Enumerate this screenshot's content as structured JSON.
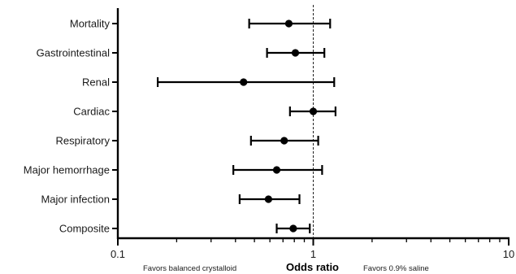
{
  "chart_data": {
    "type": "forest",
    "scale": "log",
    "xlabel": "Odds ratio",
    "xlim": [
      0.1,
      10
    ],
    "xticks": [
      {
        "value": 0.1,
        "label": "0.1"
      },
      {
        "value": 1,
        "label": "1"
      },
      {
        "value": 10,
        "label": "10"
      }
    ],
    "reference_line": 1,
    "favors_left": "Favors balanced crystalloid",
    "favors_right": "Favors 0.9% saline",
    "rows": [
      {
        "label": "Mortality",
        "estimate": 0.75,
        "lower": 0.47,
        "upper": 1.22
      },
      {
        "label": "Gastrointestinal",
        "estimate": 0.81,
        "lower": 0.58,
        "upper": 1.14
      },
      {
        "label": "Renal",
        "estimate": 0.44,
        "lower": 0.16,
        "upper": 1.28
      },
      {
        "label": "Cardiac",
        "estimate": 1.0,
        "lower": 0.76,
        "upper": 1.3
      },
      {
        "label": "Respiratory",
        "estimate": 0.71,
        "lower": 0.48,
        "upper": 1.06
      },
      {
        "label": "Major hemorrhage",
        "estimate": 0.65,
        "lower": 0.39,
        "upper": 1.11
      },
      {
        "label": "Major infection",
        "estimate": 0.59,
        "lower": 0.42,
        "upper": 0.85
      },
      {
        "label": "Composite",
        "estimate": 0.79,
        "lower": 0.65,
        "upper": 0.96
      }
    ],
    "colors": {
      "marks": "#000000",
      "reference_line": "#222222"
    }
  }
}
